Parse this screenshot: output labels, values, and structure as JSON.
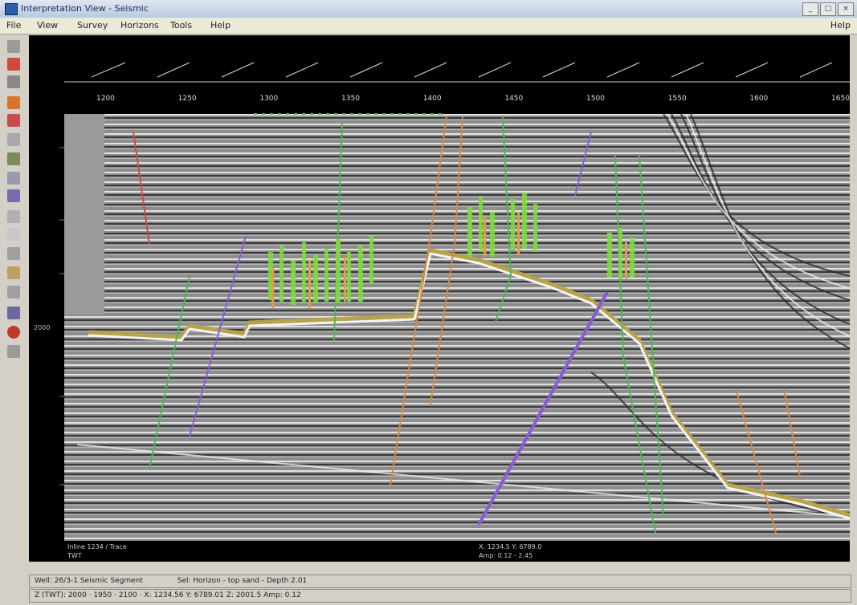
{
  "window": {
    "title": "Interpretation View - Seismic"
  },
  "menu": {
    "items": [
      "File",
      "View",
      "Survey",
      "Horizons",
      "Tools",
      "Help"
    ],
    "help": "Help"
  },
  "axis": {
    "top_ticks": [
      "1200",
      "1250",
      "1300",
      "1350",
      "1400",
      "1450",
      "1500",
      "1550",
      "1600",
      "1650"
    ],
    "left_label": "2000"
  },
  "readout": {
    "left_line1": "Inline 1234 / Trace",
    "left_line2": "TWT",
    "center_line1": "X: 1234.5  Y: 6789.0",
    "center_line2": "Amp: 0.12  -  2.45"
  },
  "status": {
    "line1_a": "Well: 26/3-1 Seismic Segment",
    "line1_b": "Sel: Horizon - top sand - Depth 2.01",
    "line2": "Z (TWT): 2000 · 1950 · 2100 · X: 1234.56  Y: 6789.01  Z: 2001.5  Amp: 0.12"
  },
  "colors": {
    "accent": "#2a5fb0",
    "horizon": "#b8a24a",
    "fault_green": "#4fb84f",
    "fault_purple": "#8a5bd6",
    "fault_orange": "#d48a4a"
  }
}
